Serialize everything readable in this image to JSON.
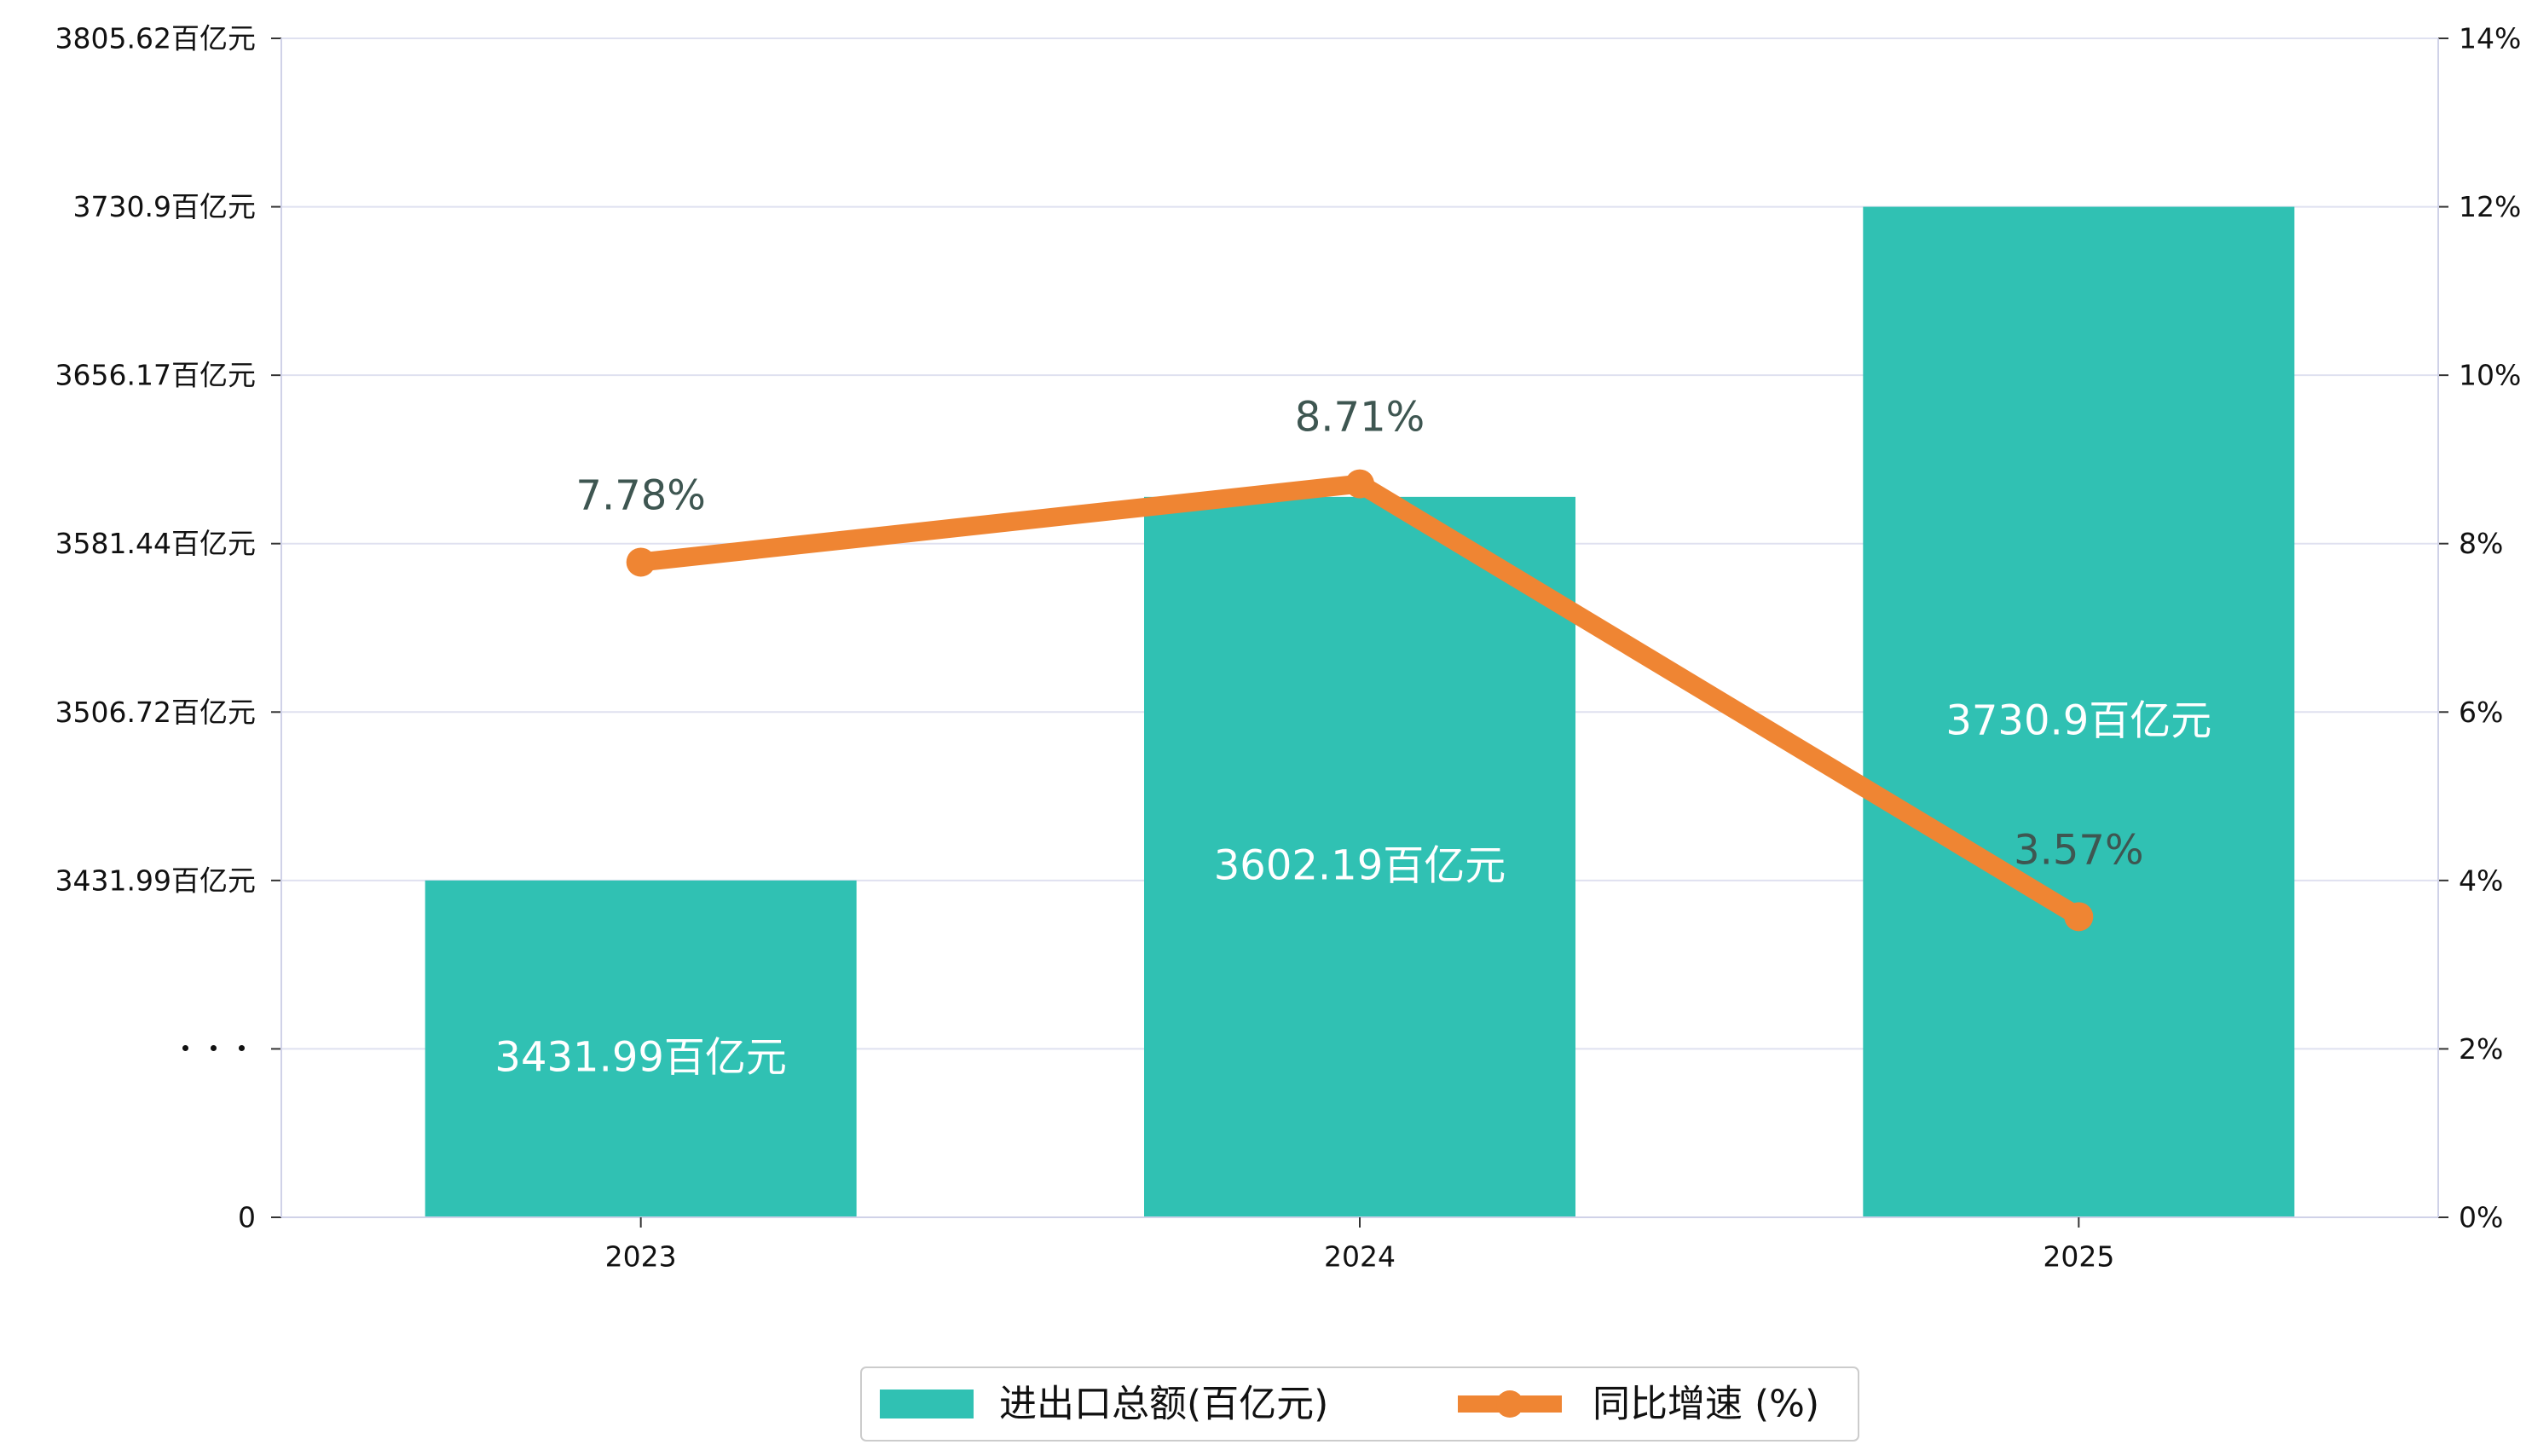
{
  "chart_data": {
    "type": "bar",
    "categories": [
      "2023",
      "2024",
      "2025"
    ],
    "series": [
      {
        "name": "进出口总额(百亿元)",
        "kind": "bar",
        "axis": "left",
        "values": [
          3431.99,
          3602.19,
          3730.9
        ],
        "labels": [
          "3431.99百亿元",
          "3602.19百亿元",
          "3730.9百亿元"
        ],
        "color": "#30c1b3"
      },
      {
        "name": "同比增速 (%)",
        "kind": "line",
        "axis": "right",
        "values": [
          7.78,
          8.71,
          3.57
        ],
        "labels": [
          "7.78%",
          "8.71%",
          "3.57%"
        ],
        "color": "#ef8533"
      }
    ],
    "y_left": {
      "broken_axis": true,
      "ticks": [
        {
          "value": 0,
          "label": "0"
        },
        {
          "value": null,
          "label": "・・・"
        },
        {
          "value": 3431.99,
          "label": "3431.99百亿元"
        },
        {
          "value": 3506.72,
          "label": "3506.72百亿元"
        },
        {
          "value": 3581.44,
          "label": "3581.44百亿元"
        },
        {
          "value": 3656.17,
          "label": "3656.17百亿元"
        },
        {
          "value": 3730.9,
          "label": "3730.9百亿元"
        },
        {
          "value": 3805.62,
          "label": "3805.62百亿元"
        }
      ]
    },
    "y_right": {
      "ylim": [
        0,
        14
      ],
      "ticks": [
        0,
        2,
        4,
        6,
        8,
        10,
        12,
        14
      ],
      "tick_labels": [
        "0%",
        "2%",
        "4%",
        "6%",
        "8%",
        "10%",
        "12%",
        "14%"
      ]
    },
    "grid": true,
    "legend_position": "bottom-center",
    "title": "",
    "xlabel": "",
    "ylabel": ""
  }
}
